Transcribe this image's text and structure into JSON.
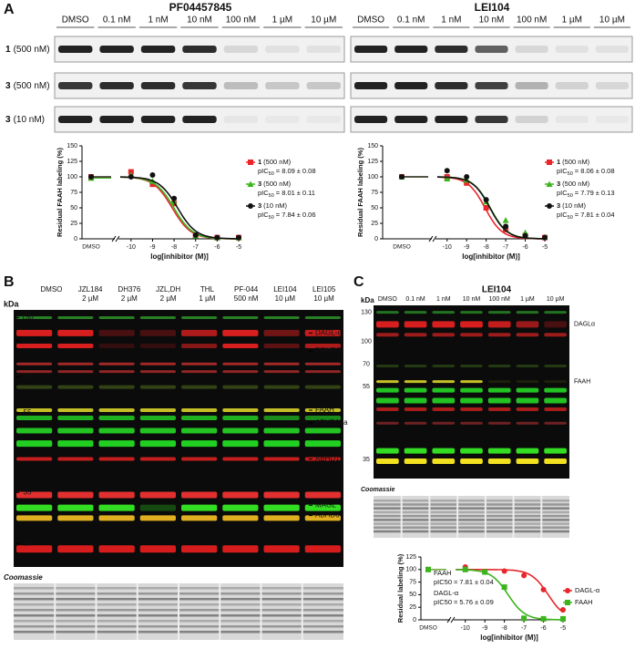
{
  "panel_labels": [
    "A",
    "B",
    "C"
  ],
  "panel_a": {
    "blots": [
      {
        "title": "PF04457845",
        "lanes": [
          "DMSO",
          "0.1 nM",
          "1 nM",
          "10 nM",
          "100 nM",
          "1 µM",
          "10 µM"
        ]
      },
      {
        "title": "LEI104",
        "lanes": [
          "DMSO",
          "0.1 nM",
          "1 nM",
          "10 nM",
          "100 nM",
          "1 µM",
          "10 µM"
        ]
      }
    ],
    "rows": [
      {
        "probe": "1",
        "conc": "(500 nM)"
      },
      {
        "probe": "3",
        "conc": "(500 nM)"
      },
      {
        "probe": "3",
        "conc": "(10 nM)"
      }
    ]
  },
  "panel_b": {
    "lanes": [
      [
        "DMSO"
      ],
      [
        "JZL184",
        "2 µM"
      ],
      [
        "DH376",
        "2 µM"
      ],
      [
        "JZL,DH",
        "2 µM"
      ],
      [
        "THL",
        "1 µM"
      ],
      [
        "PF-044",
        "500 nM"
      ],
      [
        "LEI104",
        "10 µM"
      ],
      [
        "LEI105",
        "10 µM"
      ]
    ],
    "unit": "kDa",
    "markers": [
      130,
      100,
      70,
      55,
      35,
      25
    ],
    "bands": [
      "DAGL-α",
      "DDHD2",
      "FAAH",
      "ABHD16a",
      "ABHD12",
      "MAGL",
      "ABHD6"
    ],
    "stain": "Coomassie"
  },
  "panel_c": {
    "title": "LEI104",
    "lanes": [
      "DMSO",
      "0.1 nM",
      "1 nM",
      "10 nM",
      "100 nM",
      "1 µM",
      "10 µM"
    ],
    "unit": "kDa",
    "markers": [
      130,
      100,
      70,
      55,
      35
    ],
    "bands": [
      "DAGLα",
      "FAAH"
    ],
    "stain": "Coomassie"
  },
  "chart_data": [
    {
      "type": "line",
      "y_label": "Residual FAAH labeling (%)",
      "x_label": "log[inhibitor (M)]",
      "control_label": "DMSO",
      "ylim": [
        0,
        150
      ],
      "yticks": [
        0,
        25,
        50,
        75,
        100,
        125,
        150
      ],
      "xlim": [
        -10.5,
        -5
      ],
      "xticks": [
        -10,
        -9,
        -8,
        -7,
        -6,
        -5
      ],
      "x": [
        -10,
        -9,
        -8,
        -7,
        -6,
        -5
      ],
      "stat_label": "pIC",
      "stat_sub": "50",
      "eq": "=",
      "pm": "±",
      "series": [
        {
          "name": "1",
          "detail": "(500 nM)",
          "color": "#e8262b",
          "marker": "square",
          "control": 100,
          "values": [
            108,
            88,
            57,
            5,
            2,
            2
          ],
          "pic50": 8.09,
          "pic50_err": 0.08
        },
        {
          "name": "3",
          "detail": "(500 nM)",
          "color": "#3cb41e",
          "marker": "triangle",
          "control": 98,
          "values": [
            103,
            93,
            60,
            5,
            2,
            2
          ],
          "pic50": 8.01,
          "pic50_err": 0.11
        },
        {
          "name": "3",
          "detail": "(10 nM)",
          "color": "#111111",
          "marker": "circle",
          "control": 100,
          "values": [
            100,
            103,
            65,
            6,
            2,
            2
          ],
          "pic50": 7.84,
          "pic50_err": 0.06
        }
      ]
    },
    {
      "type": "line",
      "y_label": "Residual FAAH labeling (%)",
      "x_label": "log[inhibitor (M)]",
      "control_label": "DMSO",
      "ylim": [
        0,
        150
      ],
      "yticks": [
        0,
        25,
        50,
        75,
        100,
        125,
        150
      ],
      "xlim": [
        -10.5,
        -5
      ],
      "xticks": [
        -10,
        -9,
        -8,
        -7,
        -6,
        -5
      ],
      "x": [
        -10,
        -9,
        -8,
        -7,
        -6,
        -5
      ],
      "stat_label": "pIC",
      "stat_sub": "50",
      "eq": "=",
      "pm": "±",
      "series": [
        {
          "name": "1",
          "detail": "(500 nM)",
          "color": "#e8262b",
          "marker": "square",
          "control": 100,
          "values": [
            100,
            90,
            50,
            15,
            5,
            2
          ],
          "pic50": 8.06,
          "pic50_err": 0.08
        },
        {
          "name": "3",
          "detail": "(500 nM)",
          "color": "#3cb41e",
          "marker": "triangle",
          "control": 100,
          "values": [
            97,
            95,
            60,
            30,
            10,
            3
          ],
          "pic50": 7.79,
          "pic50_err": 0.13
        },
        {
          "name": "3",
          "detail": "(10 nM)",
          "color": "#111111",
          "marker": "circle",
          "control": 100,
          "values": [
            110,
            100,
            63,
            20,
            5,
            2
          ],
          "pic50": 7.81,
          "pic50_err": 0.04
        }
      ]
    },
    {
      "type": "line",
      "y_label": "Residual labeling (%)",
      "x_label": "log[inhibitor (M)]",
      "control_label": "DMSO",
      "ylim": [
        0,
        125
      ],
      "yticks": [
        0,
        25,
        50,
        75,
        100,
        125
      ],
      "xlim": [
        -10.5,
        -5
      ],
      "xticks": [
        -10,
        -9,
        -8,
        -7,
        -6,
        -5
      ],
      "x": [
        -10,
        -9,
        -8,
        -7,
        -6,
        -5
      ],
      "stat_label": "pIC50",
      "eq": "=",
      "pm": "±",
      "series": [
        {
          "name": "DAGL-α",
          "color": "#e8262b",
          "marker": "circle",
          "control": 100,
          "values": [
            105,
            95,
            97,
            88,
            60,
            20
          ],
          "pic50": 5.76,
          "pic50_err": 0.09
        },
        {
          "name": "FAAH",
          "color": "#3cb41e",
          "marker": "square",
          "control": 100,
          "values": [
            100,
            95,
            65,
            3,
            2,
            2
          ],
          "pic50": 7.81,
          "pic50_err": 0.04
        }
      ]
    }
  ]
}
